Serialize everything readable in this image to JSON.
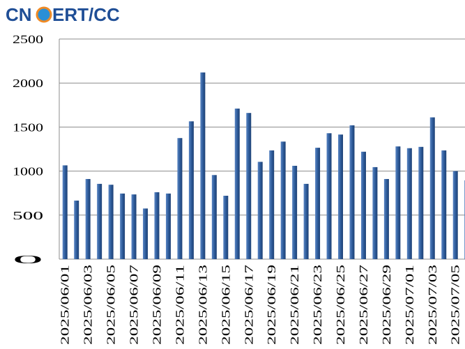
{
  "logo_left": "CN",
  "logo_right": "ERT/CC",
  "chart_data": {
    "type": "bar",
    "categories": [
      "2025/06/01",
      null,
      "2025/06/03",
      null,
      "2025/06/05",
      null,
      "2025/06/07",
      null,
      "2025/06/09",
      null,
      "2025/06/11",
      null,
      "2025/06/13",
      null,
      "2025/06/15",
      null,
      "2025/06/17",
      null,
      "2025/06/19",
      null,
      "2025/06/21",
      null,
      "2025/06/23",
      null,
      "2025/06/25",
      null,
      "2025/06/27",
      null,
      "2025/06/29",
      null,
      "2025/07/01",
      null,
      "2025/07/03",
      null,
      "2025/07/05",
      null
    ],
    "values": [
      1065,
      665,
      910,
      855,
      845,
      745,
      735,
      575,
      760,
      745,
      1375,
      1565,
      2120,
      955,
      720,
      1710,
      1660,
      1105,
      1235,
      1335,
      1060,
      855,
      1265,
      1430,
      1415,
      1520,
      1220,
      1045,
      910,
      1280,
      1260,
      1275,
      1610,
      1235,
      1000,
      895
    ],
    "color": "#2f5d9c",
    "ylim": [
      0,
      2500
    ],
    "yticks": [
      0,
      500,
      1000,
      1500,
      2000,
      2500
    ],
    "grid": true
  }
}
